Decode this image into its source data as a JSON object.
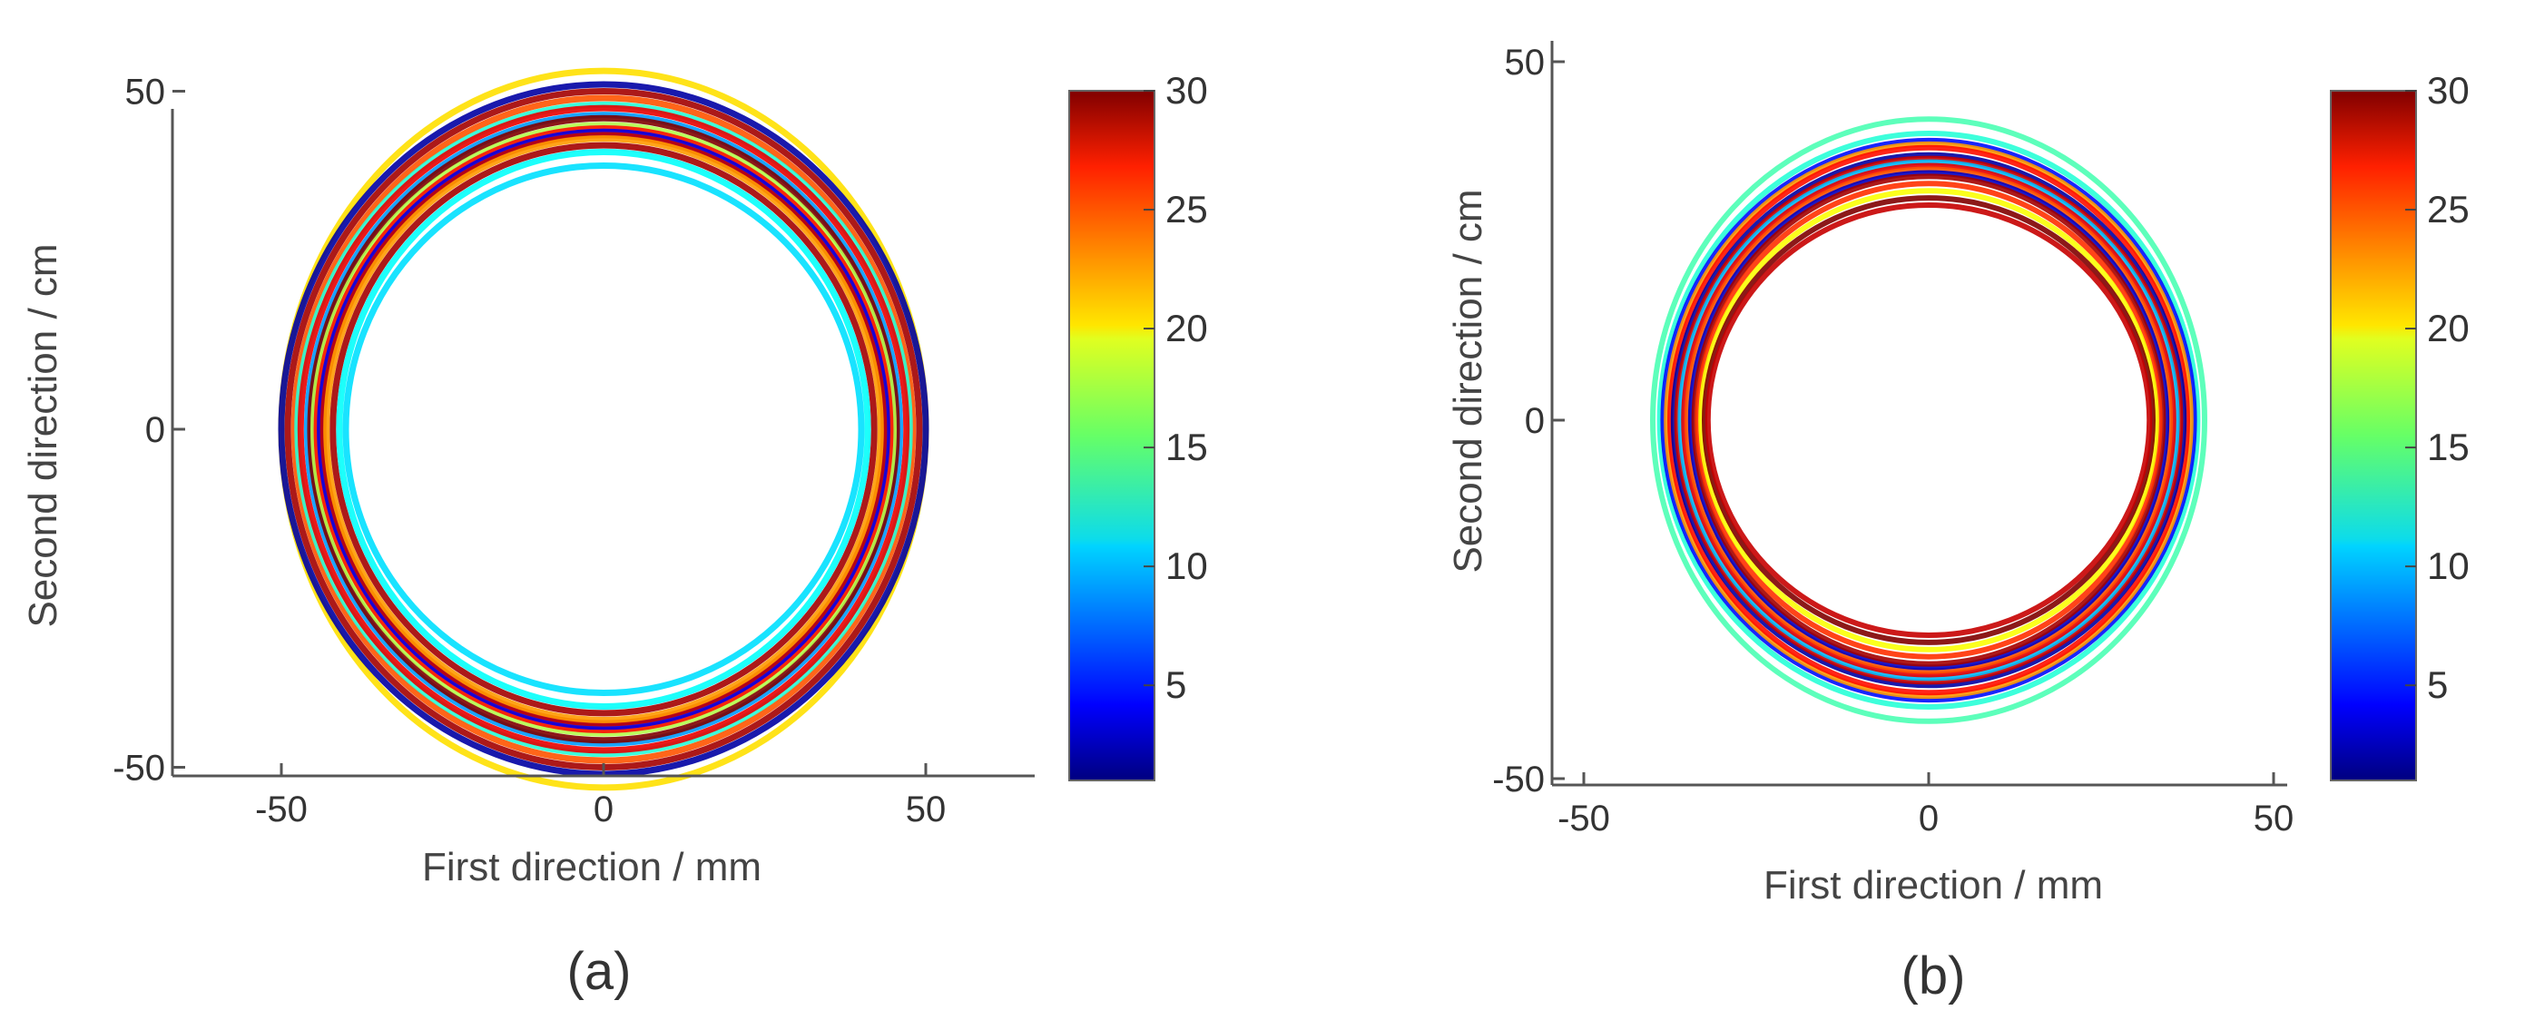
{
  "chart_data": [
    {
      "type": "line",
      "panel_label": "(a)",
      "xlabel": "First direction / mm",
      "ylabel": "Second direction / cm",
      "xlim": [
        -68,
        68
      ],
      "ylim": [
        -52,
        52
      ],
      "x_ticks": [
        -50,
        0,
        50
      ],
      "y_ticks": [
        -50,
        0,
        50
      ],
      "colorbar": {
        "range": [
          1,
          30
        ],
        "ticks": [
          5,
          10,
          15,
          20,
          25,
          30
        ]
      },
      "rings": [
        {
          "rx": 50,
          "ry": 53,
          "value": 20
        },
        {
          "rx": 50,
          "ry": 51,
          "value": 2
        },
        {
          "rx": 49,
          "ry": 50,
          "value": 29
        },
        {
          "rx": 48,
          "ry": 49,
          "value": 24
        },
        {
          "rx": 47.5,
          "ry": 48,
          "value": 13
        },
        {
          "rx": 47,
          "ry": 47.5,
          "value": 27
        },
        {
          "rx": 46,
          "ry": 46.5,
          "value": 9
        },
        {
          "rx": 45.5,
          "ry": 46,
          "value": 30
        },
        {
          "rx": 45,
          "ry": 45,
          "value": 17
        },
        {
          "rx": 44.5,
          "ry": 44.5,
          "value": 26
        },
        {
          "rx": 44,
          "ry": 44,
          "value": 4
        },
        {
          "rx": 43.5,
          "ry": 43.5,
          "value": 28
        },
        {
          "rx": 43,
          "ry": 43,
          "value": 22
        },
        {
          "rx": 42,
          "ry": 42,
          "value": 29
        },
        {
          "rx": 41,
          "ry": 41,
          "value": 12
        },
        {
          "rx": 40,
          "ry": 39,
          "value": 11
        }
      ]
    },
    {
      "type": "line",
      "panel_label": "(b)",
      "xlabel": "First direction / mm",
      "ylabel": "Second direction / cm",
      "xlim": [
        -50,
        50
      ],
      "ylim": [
        -50,
        50
      ],
      "x_ticks": [
        -50,
        0,
        50
      ],
      "y_ticks": [
        -50,
        0,
        50
      ],
      "colorbar": {
        "range": [
          1,
          30
        ],
        "ticks": [
          5,
          10,
          15,
          20,
          25,
          30
        ]
      },
      "rings": [
        {
          "rx": 40,
          "ry": 42,
          "value": 14
        },
        {
          "rx": 39,
          "ry": 40,
          "value": 13
        },
        {
          "rx": 38.5,
          "ry": 39,
          "value": 5
        },
        {
          "rx": 38,
          "ry": 38.5,
          "value": 22
        },
        {
          "rx": 37.5,
          "ry": 38,
          "value": 26
        },
        {
          "rx": 37,
          "ry": 37,
          "value": 2
        },
        {
          "rx": 36.5,
          "ry": 36.5,
          "value": 28
        },
        {
          "rx": 36,
          "ry": 36,
          "value": 10
        },
        {
          "rx": 35.5,
          "ry": 35.5,
          "value": 27
        },
        {
          "rx": 35,
          "ry": 35,
          "value": 24
        },
        {
          "rx": 34.5,
          "ry": 34.5,
          "value": 3
        },
        {
          "rx": 34,
          "ry": 34,
          "value": 29
        },
        {
          "rx": 33.5,
          "ry": 33,
          "value": 25
        },
        {
          "rx": 33,
          "ry": 32,
          "value": 19
        },
        {
          "rx": 32.5,
          "ry": 31,
          "value": 30
        },
        {
          "rx": 32,
          "ry": 30,
          "value": 28
        }
      ]
    }
  ]
}
